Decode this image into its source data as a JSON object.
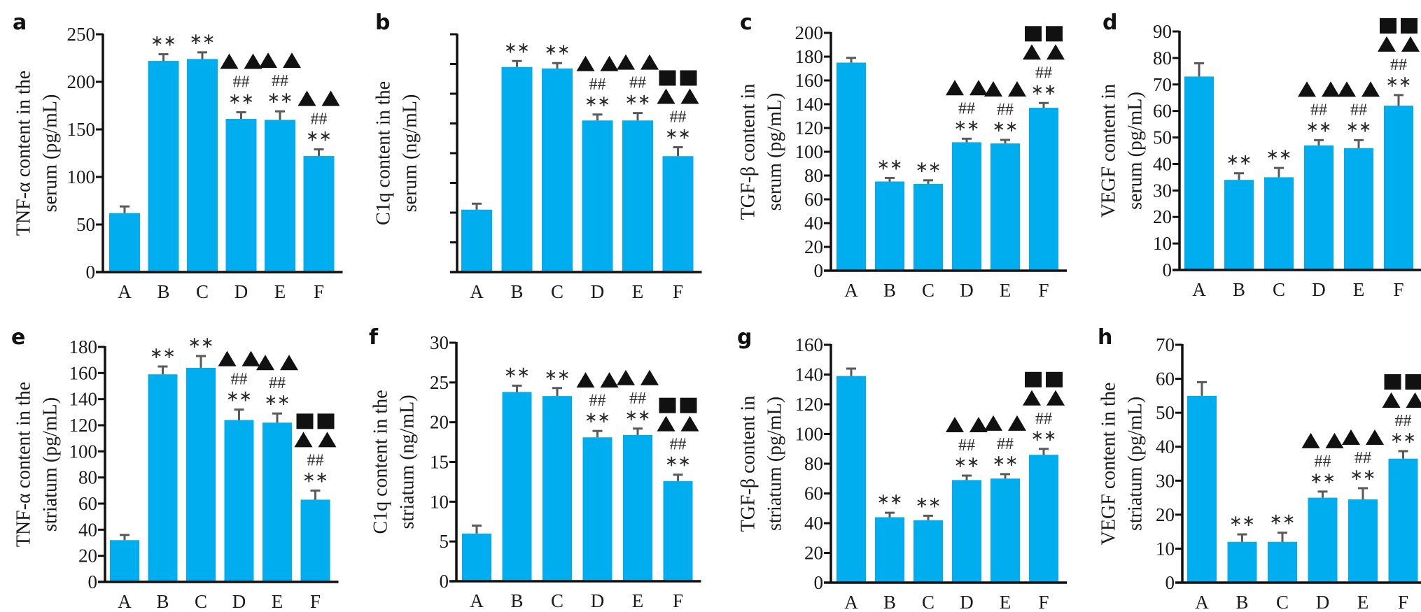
{
  "figure": {
    "bar_color": "#00adee",
    "error_color": "#5a5a5a",
    "marker_color": "#111111"
  },
  "chart_data": [
    {
      "panel": "a",
      "type": "bar",
      "categories": [
        "A",
        "B",
        "C",
        "D",
        "E",
        "F"
      ],
      "values": [
        62,
        222,
        224,
        161,
        160,
        122
      ],
      "errors": [
        7,
        7,
        7,
        7,
        9,
        7
      ],
      "ylabel_lines": [
        "TNF-α content in the",
        "serum (pg/mL)"
      ],
      "ylim": [
        0,
        250
      ],
      "yticks": [
        0,
        50,
        100,
        150,
        200,
        250
      ],
      "ytick_labels": [
        "0",
        "50",
        "100",
        "150",
        "200",
        "250"
      ],
      "significance": [
        [],
        [
          "**"
        ],
        [
          "**"
        ],
        [
          "**",
          "##",
          "▲▲"
        ],
        [
          "**",
          "##",
          "▲▲"
        ],
        [
          "**",
          "##",
          "▲▲"
        ]
      ]
    },
    {
      "panel": "b",
      "type": "bar",
      "categories": [
        "A",
        "B",
        "C",
        "D",
        "E",
        "F"
      ],
      "values": [
        2.1,
        6.9,
        6.85,
        5.1,
        5.1,
        3.9
      ],
      "errors": [
        0.2,
        0.2,
        0.18,
        0.2,
        0.25,
        0.3
      ],
      "ylabel_lines": [
        "C1q content in the",
        "serum (ng/mL)"
      ],
      "ylim": [
        0,
        8
      ],
      "yticks": [
        0,
        1,
        2,
        3,
        4,
        5,
        6,
        7,
        8
      ],
      "ytick_labels": [
        "",
        "",
        "",
        "",
        "",
        "",
        "",
        "",
        ""
      ],
      "significance": [
        [],
        [
          "**"
        ],
        [
          "**"
        ],
        [
          "**",
          "##",
          "▲▲"
        ],
        [
          "**",
          "##",
          "▲▲"
        ],
        [
          "**",
          "##",
          "▲▲",
          "■■"
        ]
      ]
    },
    {
      "panel": "c",
      "type": "bar",
      "categories": [
        "A",
        "B",
        "C",
        "D",
        "E",
        "F"
      ],
      "values": [
        175,
        75,
        73,
        108,
        107,
        137
      ],
      "errors": [
        4,
        3,
        3,
        3,
        3,
        4
      ],
      "ylabel_lines": [
        "TGF-β content in",
        "serum (pg/mL)"
      ],
      "ylim": [
        0,
        200
      ],
      "yticks": [
        0,
        20,
        40,
        60,
        80,
        100,
        120,
        140,
        160,
        180,
        200
      ],
      "ytick_labels": [
        "0",
        "20",
        "40",
        "60",
        "80",
        "100",
        "120",
        "140",
        "160",
        "180",
        "200"
      ],
      "significance": [
        [],
        [
          "**"
        ],
        [
          "**"
        ],
        [
          "**",
          "##",
          "▲▲"
        ],
        [
          "**",
          "##",
          "▲▲"
        ],
        [
          "**",
          "##",
          "▲▲",
          "■■"
        ]
      ]
    },
    {
      "panel": "d",
      "type": "bar",
      "categories": [
        "A",
        "B",
        "C",
        "D",
        "E",
        "F"
      ],
      "values": [
        73,
        34,
        35,
        47,
        46,
        62
      ],
      "errors": [
        5,
        2.5,
        3.5,
        2,
        3,
        4
      ],
      "ylabel_lines": [
        "VEGF content in",
        "serum (pg/mL)"
      ],
      "ylim": [
        0,
        90
      ],
      "yticks": [
        0,
        10,
        20,
        30,
        40,
        50,
        60,
        70,
        80,
        90
      ],
      "ytick_labels": [
        "0",
        "10",
        "20",
        "30",
        "40",
        "50",
        "60",
        "70",
        "80",
        "90"
      ],
      "significance": [
        [],
        [
          "**"
        ],
        [
          "**"
        ],
        [
          "**",
          "##",
          "▲▲"
        ],
        [
          "**",
          "##",
          "▲▲"
        ],
        [
          "**",
          "##",
          "▲▲",
          "■■"
        ]
      ]
    },
    {
      "panel": "e",
      "type": "bar",
      "categories": [
        "A",
        "B",
        "C",
        "D",
        "E",
        "F"
      ],
      "values": [
        32,
        159,
        164,
        124,
        122,
        63
      ],
      "errors": [
        4,
        6,
        9,
        8,
        7,
        7
      ],
      "ylabel_lines": [
        "TNF-α content in the",
        "striatum (pg/mL)"
      ],
      "ylim": [
        0,
        180
      ],
      "yticks": [
        0,
        20,
        40,
        60,
        80,
        100,
        120,
        140,
        160,
        180
      ],
      "ytick_labels": [
        "0",
        "20",
        "40",
        "60",
        "80",
        "100",
        "120",
        "140",
        "160",
        "180"
      ],
      "significance": [
        [],
        [
          "**"
        ],
        [
          "**"
        ],
        [
          "**",
          "##",
          "▲▲"
        ],
        [
          "**",
          "##",
          "▲▲"
        ],
        [
          "**",
          "##",
          "▲▲",
          "■■"
        ]
      ]
    },
    {
      "panel": "f",
      "type": "bar",
      "categories": [
        "A",
        "B",
        "C",
        "D",
        "E",
        "F"
      ],
      "values": [
        6,
        23.8,
        23.3,
        18.1,
        18.4,
        12.6
      ],
      "errors": [
        1,
        0.8,
        1,
        0.8,
        0.8,
        0.8
      ],
      "ylabel_lines": [
        "C1q content in the",
        "striatum (ng/mL)"
      ],
      "ylim": [
        0,
        30
      ],
      "yticks": [
        0,
        5,
        10,
        15,
        20,
        25,
        30
      ],
      "ytick_labels": [
        "0",
        "5",
        "10",
        "15",
        "20",
        "25",
        "30"
      ],
      "significance": [
        [],
        [
          "**"
        ],
        [
          "**"
        ],
        [
          "**",
          "##",
          "▲▲"
        ],
        [
          "**",
          "##",
          "▲▲"
        ],
        [
          "**",
          "##",
          "▲▲",
          "■■"
        ]
      ]
    },
    {
      "panel": "g",
      "type": "bar",
      "categories": [
        "A",
        "B",
        "C",
        "D",
        "E",
        "F"
      ],
      "values": [
        139,
        44,
        42,
        69,
        70,
        86
      ],
      "errors": [
        5,
        3,
        3,
        3,
        3,
        4
      ],
      "ylabel_lines": [
        "TGF-β content in",
        "striatum (pg/mL)"
      ],
      "ylim": [
        0,
        160
      ],
      "yticks": [
        0,
        20,
        40,
        60,
        80,
        100,
        120,
        140,
        160
      ],
      "ytick_labels": [
        "0",
        "20",
        "40",
        "60",
        "80",
        "100",
        "120",
        "140",
        "160"
      ],
      "significance": [
        [],
        [
          "**"
        ],
        [
          "**"
        ],
        [
          "**",
          "##",
          "▲▲"
        ],
        [
          "**",
          "##",
          "▲▲"
        ],
        [
          "**",
          "##",
          "▲▲",
          "■■"
        ]
      ]
    },
    {
      "panel": "h",
      "type": "bar",
      "categories": [
        "A",
        "B",
        "C",
        "D",
        "E",
        "F"
      ],
      "values": [
        55,
        12,
        12,
        25,
        24.5,
        36.5
      ],
      "errors": [
        4,
        2.2,
        2.7,
        1.8,
        3.3,
        2.2
      ],
      "ylabel_lines": [
        "VEGF content in the",
        "striatum (pg/mL)"
      ],
      "ylim": [
        0,
        70
      ],
      "yticks": [
        0,
        10,
        20,
        30,
        40,
        50,
        60,
        70
      ],
      "ytick_labels": [
        "0",
        "10",
        "20",
        "30",
        "40",
        "50",
        "60",
        "70"
      ],
      "significance": [
        [],
        [
          "**"
        ],
        [
          "**"
        ],
        [
          "**",
          "##",
          "▲▲"
        ],
        [
          "**",
          "##",
          "▲▲"
        ],
        [
          "**",
          "##",
          "▲▲",
          "■■"
        ]
      ]
    }
  ]
}
